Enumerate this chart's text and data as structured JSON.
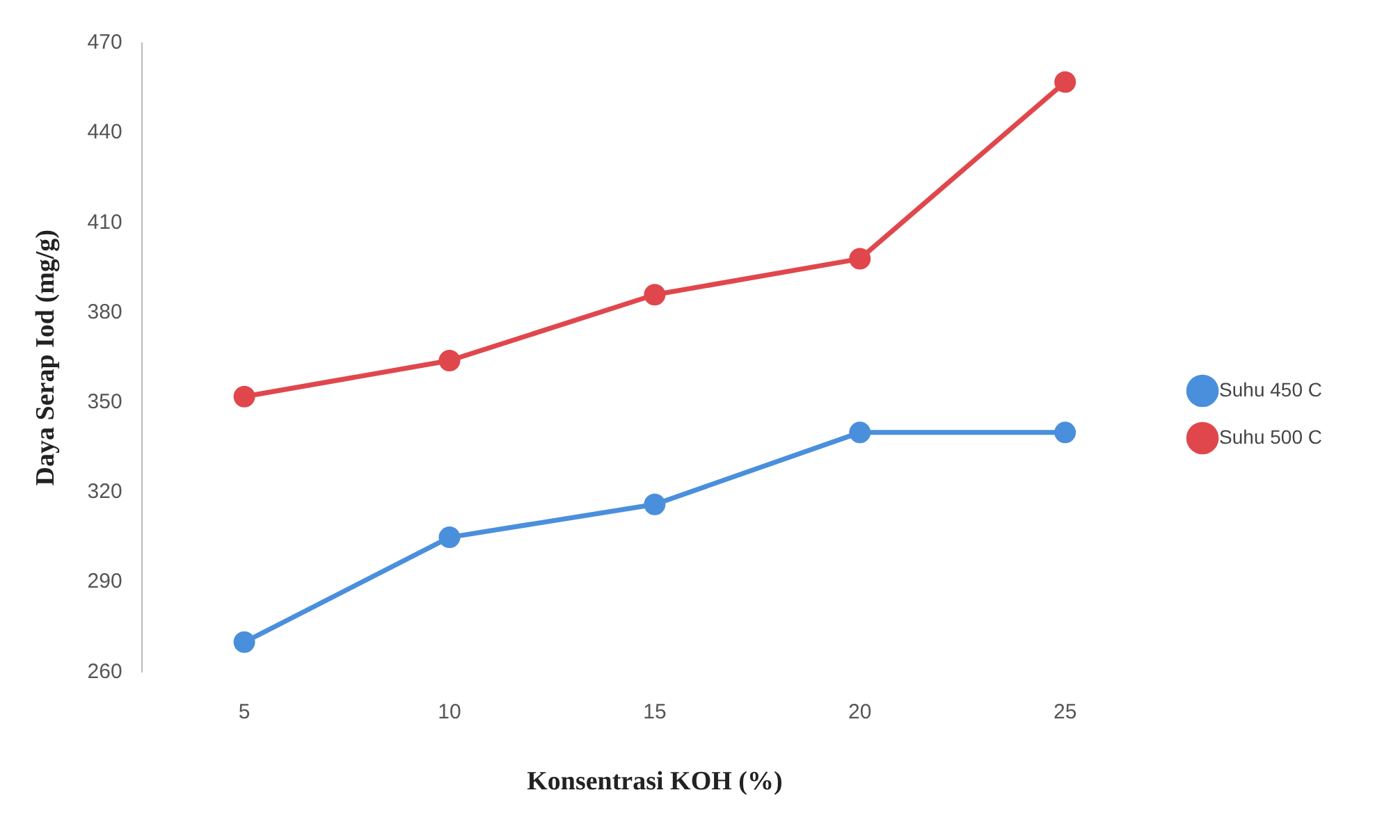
{
  "chart_data": {
    "type": "line",
    "xlabel": "Konsentrasi KOH (%)",
    "ylabel": "Daya Serap Iod (mg/g)",
    "categories": [
      "5",
      "10",
      "15",
      "20",
      "25"
    ],
    "series": [
      {
        "name": "Suhu 450 C",
        "color": "#4a8fdc",
        "values": [
          270,
          305,
          316,
          340,
          340
        ]
      },
      {
        "name": "Suhu 500 C",
        "color": "#e0474c",
        "values": [
          352,
          364,
          386,
          398,
          457
        ]
      }
    ],
    "ylim": [
      260,
      470
    ],
    "yticks": [
      260,
      290,
      320,
      350,
      380,
      410,
      440,
      470
    ],
    "grid": false,
    "legend": "right",
    "marker": "circle",
    "line_style": "solid"
  }
}
